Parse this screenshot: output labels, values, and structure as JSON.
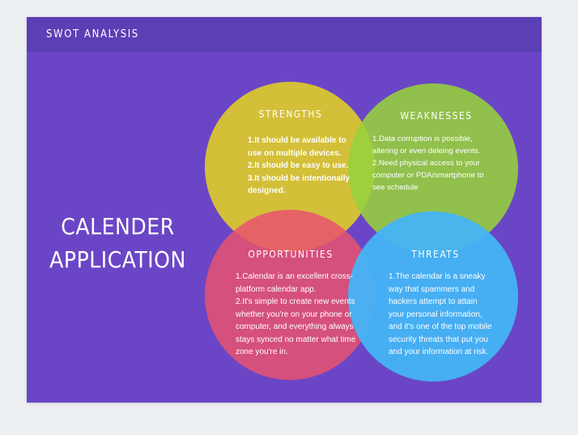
{
  "header": {
    "title": "SWOT ANALYSIS"
  },
  "main_title": {
    "line1": "CALENDER",
    "line2": "APPLICATION"
  },
  "colors": {
    "background": "#6a46c6",
    "header": "#5b3fb4",
    "strengths": "#dac632",
    "weaknesses": "#96d23c",
    "opportunities": "#e8526e",
    "threats": "#45b4f5"
  },
  "quadrants": {
    "strengths": {
      "title": "STRENGTHS",
      "lines": [
        "1.It should be available to",
        "use on multiple devices.",
        "2.It should be easy to use.",
        "3.It should be intentionally",
        "designed."
      ]
    },
    "weaknesses": {
      "title": "WEAKNESSES",
      "lines": [
        "1.Data corruption is possible,",
        "altering or even deleing events.",
        "2.Need physical access to your",
        "computer or PDA/smartphone to",
        "see schedule"
      ]
    },
    "opportunities": {
      "title": "OPPORTUNITIES",
      "lines": [
        "1.Calendar is an excellent cross-",
        "platform calendar app.",
        "2.It's simple to create new events",
        "whether you're on your phone or",
        "computer, and everything always",
        "stays synced no matter what time",
        "zone you're in."
      ]
    },
    "threats": {
      "title": "THREATS",
      "lines": [
        "1.The calendar is a sneaky",
        "way that spammers and",
        "hackers attempt to attain",
        "your personal information,",
        "and it's one of the top mobile",
        "security threats that put you",
        "and your information at risk."
      ]
    }
  }
}
